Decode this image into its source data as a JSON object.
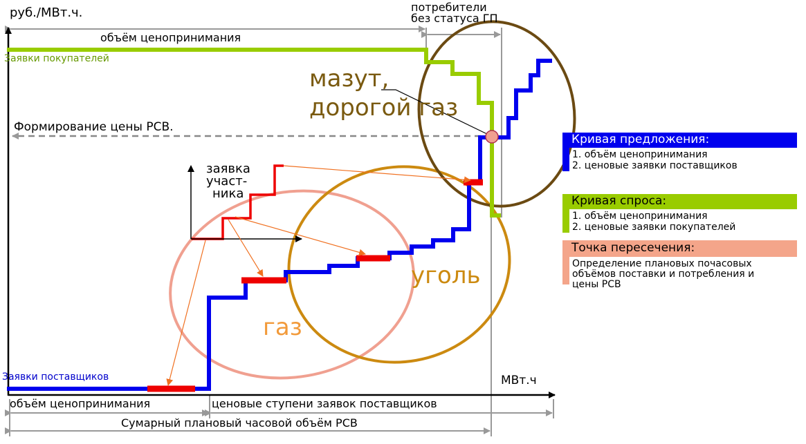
{
  "axes": {
    "y_unit": "руб./МВт.ч.",
    "x_unit": "МВт.ч"
  },
  "top": {
    "consumers_no_gp_line1": "потребители",
    "consumers_no_gp_line2": "без статуса ГП",
    "price_taking_volume": "объём ценопринимания",
    "buyer_bids": "Заявки покупателей"
  },
  "market_price": "Формирование цены РСВ.",
  "participant_bid": {
    "line1": "заявка",
    "line2": "участ-",
    "line3": "ника"
  },
  "fuel": {
    "fuel_oil_line1": "мазут,",
    "fuel_oil_line2": "дорогой газ",
    "coal": "уголь",
    "gas": "газ"
  },
  "bottom": {
    "supplier_bids": "Заявки поставщиков",
    "price_taking_volume": "объём ценопринимания",
    "price_steps": "ценовые ступени заявок поставщиков",
    "total_volume": "Сумарный плановый часовой объём РСВ"
  },
  "legend": {
    "supply": {
      "title": "Кривая предложения:",
      "item1": "1. объём ценопринимания",
      "item2": "2. ценовые заявки поставщиков",
      "color": "#0000ee"
    },
    "demand": {
      "title": "Кривая спроса:",
      "item1": "1. объём ценопринимания",
      "item2": "2. ценовые заявки покупателей",
      "color": "#99cc00"
    },
    "intersection": {
      "title": "Точка пересечения:",
      "item1": "Определение плановых почасовых",
      "item2": "объёмов поставки и потребления и",
      "item3": "цены РСВ",
      "color": "#f4a58a"
    }
  },
  "colors": {
    "supply_curve": "#0000ee",
    "demand_curve": "#99cc00",
    "bid_red": "#ee0000",
    "ellipse_gas": "#f0a090",
    "ellipse_coal": "#cc8a10",
    "ellipse_fueloil": "#6b4a12",
    "text_fueloil": "#7a5a10",
    "text_coal": "#cc8a10",
    "text_gas": "#f29a3a",
    "dim_gray": "#999999"
  }
}
